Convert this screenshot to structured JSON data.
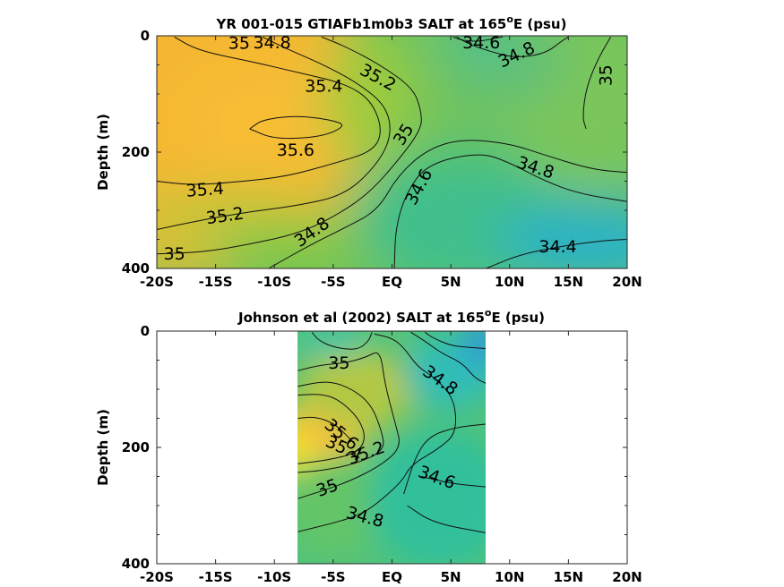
{
  "chart_data": [
    {
      "type": "heatmap",
      "title_main": "YR 001-015 GTIAFb1m0b3 SALT at 165",
      "title_sup": "o",
      "title_tail": "E (psu)",
      "ylabel": "Depth (m)",
      "xlim": [
        -20,
        20
      ],
      "ylim": [
        400,
        0
      ],
      "x_ticks": [
        {
          "value": -20,
          "label": "-20S"
        },
        {
          "value": -15,
          "label": "-15S"
        },
        {
          "value": -10,
          "label": "-10S"
        },
        {
          "value": -5,
          "label": "-5S"
        },
        {
          "value": 0,
          "label": "EQ"
        },
        {
          "value": 5,
          "label": "5N"
        },
        {
          "value": 10,
          "label": "10N"
        },
        {
          "value": 15,
          "label": "15N"
        },
        {
          "value": 20,
          "label": "20N"
        }
      ],
      "y_ticks": [
        {
          "value": 0,
          "label": "0"
        },
        {
          "value": 200,
          "label": "200"
        },
        {
          "value": 400,
          "label": "400"
        }
      ],
      "data_extent_x": [
        -20,
        20
      ],
      "contour_labels": [
        {
          "text": "35",
          "x": -13,
          "y": 13,
          "angle": 0
        },
        {
          "text": "34.8",
          "x": -10.2,
          "y": 12,
          "angle": 0
        },
        {
          "text": "34.6",
          "x": 7.6,
          "y": 12,
          "angle": 0
        },
        {
          "text": "34.8",
          "x": 10.6,
          "y": 33,
          "angle": -25
        },
        {
          "text": "35",
          "x": 18.2,
          "y": 68,
          "angle": -90
        },
        {
          "text": "35.2",
          "x": -1.2,
          "y": 72,
          "angle": 28
        },
        {
          "text": "35.4",
          "x": -5.8,
          "y": 87,
          "angle": 0
        },
        {
          "text": "35.6",
          "x": -8.2,
          "y": 197,
          "angle": 0
        },
        {
          "text": "35",
          "x": 1.0,
          "y": 170,
          "angle": -58
        },
        {
          "text": "34.8",
          "x": 12.2,
          "y": 227,
          "angle": 18
        },
        {
          "text": "35.4",
          "x": -15.9,
          "y": 265,
          "angle": -4
        },
        {
          "text": "34.6",
          "x": 2.3,
          "y": 260,
          "angle": -62
        },
        {
          "text": "35.2",
          "x": -14.2,
          "y": 310,
          "angle": -8
        },
        {
          "text": "34.8",
          "x": -6.8,
          "y": 338,
          "angle": -35
        },
        {
          "text": "34.4",
          "x": 14.1,
          "y": 363,
          "angle": 0
        },
        {
          "text": "35",
          "x": -18.5,
          "y": 375,
          "angle": 0
        }
      ],
      "contours": [
        {
          "level": 35.6,
          "points": [
            [
              -12.1,
              160
            ],
            [
              -11,
              144
            ],
            [
              -8,
              137
            ],
            [
              -5,
              145
            ],
            [
              -3.9,
              155
            ],
            [
              -6,
              174
            ],
            [
              -10,
              178
            ],
            [
              -12.1,
              160
            ]
          ]
        },
        {
          "level": 35.4,
          "points": [
            [
              -20,
              250
            ],
            [
              -17,
              257
            ],
            [
              -13,
              251
            ],
            [
              -9,
              242
            ],
            [
              -5,
              220
            ],
            [
              -1.5,
              198
            ],
            [
              -0.8,
              160
            ],
            [
              -1.8,
              110
            ],
            [
              -4,
              82
            ],
            [
              -8,
              63
            ],
            [
              -12,
              44
            ],
            [
              -15,
              32
            ],
            [
              -17,
              20
            ],
            [
              -18.5,
              2
            ]
          ]
        },
        {
          "level": 35.2,
          "points": [
            [
              -20,
              333
            ],
            [
              -16,
              316
            ],
            [
              -12,
              302
            ],
            [
              -8,
              292
            ],
            [
              -4,
              274
            ],
            [
              -1.2,
              220
            ],
            [
              0,
              170
            ],
            [
              -0.5,
              120
            ],
            [
              -3,
              80
            ],
            [
              -6,
              48
            ],
            [
              -9,
              22
            ],
            [
              -11,
              2
            ]
          ]
        },
        {
          "level": 35.0,
          "points": [
            [
              -20,
              375
            ],
            [
              -16,
              372
            ],
            [
              -12,
              358
            ],
            [
              -8,
              340
            ],
            [
              -5,
              312
            ],
            [
              -2,
              272
            ],
            [
              0.7,
              210
            ],
            [
              2.5,
              160
            ],
            [
              2.5,
              130
            ],
            [
              1.8,
              90
            ],
            [
              -1,
              50
            ],
            [
              -4,
              18
            ],
            [
              -6,
              2
            ]
          ]
        },
        {
          "level": 34.8,
          "points": [
            [
              -10.5,
              400
            ],
            [
              -7,
              360
            ],
            [
              -4,
              330
            ],
            [
              -1.2,
              300
            ],
            [
              0.5,
              240
            ],
            [
              3,
              195
            ],
            [
              6,
              177
            ],
            [
              10,
              185
            ],
            [
              13,
              205
            ],
            [
              17,
              230
            ],
            [
              20,
              235
            ]
          ]
        },
        {
          "level": 34.8,
          "points": [
            [
              5.5,
              2
            ],
            [
              6.5,
              14
            ],
            [
              8.5,
              28
            ],
            [
              10.5,
              38
            ],
            [
              13,
              31
            ],
            [
              14.5,
              8
            ],
            [
              15,
              2
            ]
          ]
        },
        {
          "level": 34.6,
          "points": [
            [
              0.2,
              400
            ],
            [
              0.3,
              330
            ],
            [
              1.2,
              270
            ],
            [
              3,
              220
            ],
            [
              7.5,
              200
            ],
            [
              10,
              218
            ],
            [
              13,
              250
            ],
            [
              16,
              272
            ],
            [
              20,
              285
            ]
          ]
        },
        {
          "level": 34.6,
          "points": [
            [
              5.2,
              2
            ],
            [
              6,
              8
            ],
            [
              7.5,
              10
            ],
            [
              9,
              3
            ],
            [
              9.4,
              2
            ]
          ]
        },
        {
          "level": 34.4,
          "points": [
            [
              8,
              400
            ],
            [
              11,
              375
            ],
            [
              15,
              360
            ],
            [
              18,
              352
            ],
            [
              20,
              350
            ]
          ]
        },
        {
          "level": 35.0,
          "points": [
            [
              18.6,
              2
            ],
            [
              17.5,
              40
            ],
            [
              16.5,
              90
            ],
            [
              16.2,
              140
            ],
            [
              16.5,
              160
            ]
          ]
        }
      ],
      "blobs": [
        {
          "x": -16,
          "y": 125,
          "rx": 14,
          "ry": 300,
          "color": "#f5b731"
        },
        {
          "x": -9,
          "y": 150,
          "rx": 9,
          "ry": 95,
          "color": "#f7bd36"
        },
        {
          "x": -2,
          "y": 105,
          "rx": 4,
          "ry": 110,
          "color": "#9ccb3e"
        },
        {
          "x": -14,
          "y": 320,
          "rx": 9,
          "ry": 65,
          "color": "#c9c437"
        },
        {
          "x": -8,
          "y": 370,
          "rx": 8,
          "ry": 50,
          "color": "#7fc74a"
        },
        {
          "x": 6,
          "y": 320,
          "rx": 9,
          "ry": 120,
          "color": "#3fbf8c"
        },
        {
          "x": 17,
          "y": 355,
          "rx": 8,
          "ry": 75,
          "color": "#2ab3c5"
        },
        {
          "x": 16,
          "y": 110,
          "rx": 6,
          "ry": 150,
          "color": "#7bc65a"
        },
        {
          "x": 10,
          "y": 45,
          "rx": 5,
          "ry": 65,
          "color": "#5fc079"
        },
        {
          "x": 7,
          "y": 5,
          "rx": 3,
          "ry": 18,
          "color": "#2fc0b0"
        }
      ]
    },
    {
      "type": "heatmap",
      "title_main": "Johnson et al (2002) SALT at 165",
      "title_sup": "o",
      "title_tail": "E (psu)",
      "ylabel": "Depth (m)",
      "xlim": [
        -20,
        20
      ],
      "ylim": [
        400,
        0
      ],
      "x_ticks": [
        {
          "value": -20,
          "label": "-20S"
        },
        {
          "value": -15,
          "label": "-15S"
        },
        {
          "value": -10,
          "label": "-10S"
        },
        {
          "value": -5,
          "label": "-5S"
        },
        {
          "value": 0,
          "label": "EQ"
        },
        {
          "value": 5,
          "label": "5N"
        },
        {
          "value": 10,
          "label": "10N"
        },
        {
          "value": 15,
          "label": "15N"
        },
        {
          "value": 20,
          "label": "20N"
        }
      ],
      "y_ticks": [
        {
          "value": 0,
          "label": "0"
        },
        {
          "value": 200,
          "label": "200"
        },
        {
          "value": 400,
          "label": "400"
        }
      ],
      "data_extent_x": [
        -8,
        8
      ],
      "contour_labels": [
        {
          "text": "35",
          "x": -4.5,
          "y": 55,
          "angle": 0
        },
        {
          "text": "34.8",
          "x": 4.1,
          "y": 85,
          "angle": 35
        },
        {
          "text": "35.6",
          "x": -4.3,
          "y": 178,
          "angle": 40
        },
        {
          "text": "35.4",
          "x": -4.1,
          "y": 202,
          "angle": 25
        },
        {
          "text": "35.2",
          "x": -2.2,
          "y": 210,
          "angle": -20
        },
        {
          "text": "34.6",
          "x": 3.8,
          "y": 252,
          "angle": 20
        },
        {
          "text": "35",
          "x": -5.5,
          "y": 270,
          "angle": -20
        },
        {
          "text": "34.8",
          "x": -2.3,
          "y": 320,
          "angle": 15
        }
      ],
      "contours": [
        {
          "level": 35.6,
          "points": [
            [
              -8,
              150
            ],
            [
              -6.5,
              147
            ],
            [
              -5,
              158
            ],
            [
              -4,
              176
            ],
            [
              -3.2,
              194
            ]
          ]
        },
        {
          "level": 35.4,
          "points": [
            [
              -8,
              110
            ],
            [
              -6,
              108
            ],
            [
              -4.5,
              118
            ],
            [
              -2.8,
              150
            ],
            [
              -2.2,
              185
            ],
            [
              -3,
              210
            ],
            [
              -5.5,
              222
            ],
            [
              -8,
              228
            ]
          ]
        },
        {
          "level": 35.2,
          "points": [
            [
              -8,
              95
            ],
            [
              -5.5,
              85
            ],
            [
              -3.5,
              98
            ],
            [
              -1.8,
              125
            ],
            [
              -0.9,
              170
            ],
            [
              -0.6,
              205
            ],
            [
              -3,
              228
            ],
            [
              -6,
              240
            ],
            [
              -8,
              243
            ]
          ]
        },
        {
          "level": 35.0,
          "points": [
            [
              -8,
              68
            ],
            [
              -6,
              58
            ],
            [
              -4,
              55
            ],
            [
              -2.2,
              45
            ],
            [
              -1,
              32
            ],
            [
              -0.6,
              92
            ],
            [
              0.3,
              160
            ],
            [
              0.8,
              200
            ],
            [
              -1,
              232
            ],
            [
              -4,
              262
            ],
            [
              -8,
              288
            ]
          ]
        },
        {
          "level": 34.8,
          "points": [
            [
              -1.5,
              5
            ],
            [
              0,
              12
            ],
            [
              1,
              28
            ],
            [
              2.2,
              62
            ],
            [
              3.5,
              78
            ],
            [
              5.3,
              115
            ],
            [
              5.5,
              175
            ],
            [
              4,
              202
            ],
            [
              1.6,
              230
            ],
            [
              0.8,
              260
            ],
            [
              -1.6,
              302
            ],
            [
              -3,
              318
            ],
            [
              -5,
              330
            ],
            [
              -8,
              345
            ]
          ]
        },
        {
          "level": 34.8,
          "points": [
            [
              1.3,
              300
            ],
            [
              3.5,
              330
            ],
            [
              8,
              347
            ]
          ]
        },
        {
          "level": 34.6,
          "points": [
            [
              1.6,
              2
            ],
            [
              3,
              20
            ],
            [
              4.2,
              38
            ],
            [
              6,
              55
            ],
            [
              7,
              80
            ],
            [
              8,
              90
            ]
          ]
        },
        {
          "level": 34.6,
          "points": [
            [
              1,
              280
            ],
            [
              2,
              215
            ],
            [
              3.2,
              180
            ],
            [
              5.5,
              165
            ],
            [
              8,
              160
            ]
          ]
        },
        {
          "level": 34.6,
          "points": [
            [
              2.5,
              250
            ],
            [
              5,
              262
            ],
            [
              8,
              268
            ]
          ]
        },
        {
          "level": 35.0,
          "points": [
            [
              -6.8,
              2
            ],
            [
              -6.3,
              15
            ],
            [
              -5,
              28
            ],
            [
              -3,
              33
            ],
            [
              -2,
              18
            ],
            [
              -1.7,
              2
            ]
          ]
        },
        {
          "level": 34.4,
          "points": [
            [
              2.8,
              2
            ],
            [
              3.5,
              12
            ],
            [
              5,
              25
            ],
            [
              6.5,
              28
            ],
            [
              8,
              30
            ]
          ]
        }
      ],
      "blobs": [
        {
          "x": -7,
          "y": 195,
          "rx": 3,
          "ry": 70,
          "color": "#f5e626"
        },
        {
          "x": -5,
          "y": 150,
          "rx": 3.5,
          "ry": 65,
          "color": "#f7c13b"
        },
        {
          "x": -3,
          "y": 100,
          "rx": 5,
          "ry": 70,
          "color": "#b2c844"
        },
        {
          "x": -5,
          "y": 300,
          "rx": 4,
          "ry": 85,
          "color": "#64c568"
        },
        {
          "x": 4,
          "y": 290,
          "rx": 6,
          "ry": 120,
          "color": "#33c09b"
        },
        {
          "x": 5,
          "y": 70,
          "rx": 4,
          "ry": 65,
          "color": "#31bdb5"
        },
        {
          "x": 7.6,
          "y": 20,
          "rx": 1.4,
          "ry": 45,
          "color": "#2b98dc"
        },
        {
          "x": -5,
          "y": 18,
          "rx": 3,
          "ry": 25,
          "color": "#3ec4a8"
        }
      ]
    }
  ]
}
